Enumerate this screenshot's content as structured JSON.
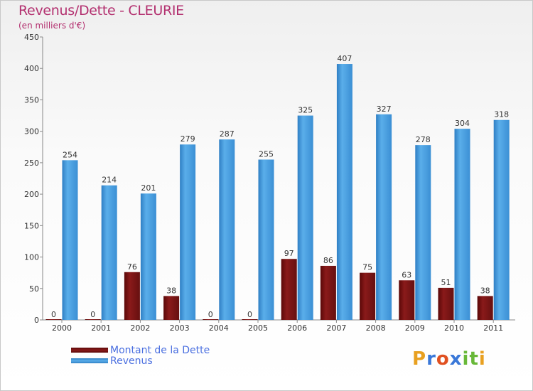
{
  "header": {
    "title": "Revenus/Dette - CLEURIE",
    "subtitle": "(en milliers d'€)"
  },
  "chart_data": {
    "type": "bar",
    "title": "Revenus/Dette - CLEURIE",
    "ylabel": "(en milliers d'€)",
    "xlabel": "",
    "ylim": [
      0,
      450
    ],
    "yticks": [
      0,
      50,
      100,
      150,
      200,
      250,
      300,
      350,
      400,
      450
    ],
    "grid": false,
    "legend_position": "bottom-left",
    "categories": [
      "2000",
      "2001",
      "2002",
      "2003",
      "2004",
      "2005",
      "2006",
      "2007",
      "2008",
      "2009",
      "2010",
      "2011"
    ],
    "series": [
      {
        "name": "Montant de la Dette",
        "color": "#7a1010",
        "values": [
          0,
          0,
          76,
          38,
          0,
          0,
          97,
          86,
          75,
          63,
          51,
          38
        ]
      },
      {
        "name": "Revenus",
        "color": "#4aa3e6",
        "values": [
          254,
          214,
          201,
          279,
          287,
          255,
          325,
          407,
          327,
          278,
          304,
          318
        ]
      }
    ]
  },
  "logo": {
    "letters": [
      "P",
      "r",
      "o",
      "x",
      "i",
      "t",
      "i"
    ],
    "colors": [
      "#e8a020",
      "#3a78d8",
      "#e05020",
      "#3a78d8",
      "#68b838",
      "#68b838",
      "#e8a020"
    ]
  }
}
